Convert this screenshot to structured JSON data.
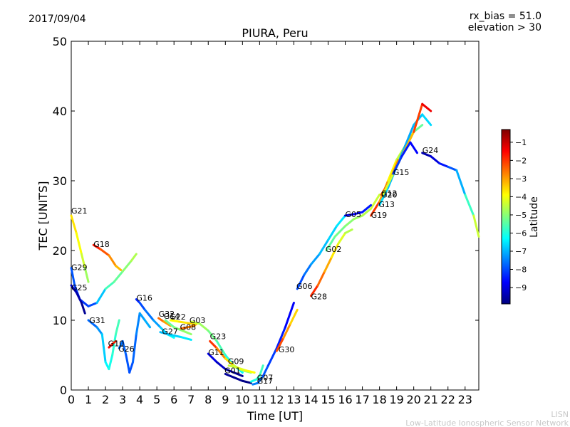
{
  "header": {
    "date": "2017/09/04",
    "rx_bias": "rx_bias = 51.0",
    "elevation": "elevation > 30",
    "title": "PIURA, Peru"
  },
  "footer": {
    "line1": "LISN",
    "line2": "Low-Latitude Ionospheric Sensor Network"
  },
  "chart_data": {
    "type": "scatter",
    "title": "PIURA, Peru",
    "xlabel": "Time [UT]",
    "ylabel": "TEC [UNITS]",
    "xlim": [
      0,
      23.8
    ],
    "ylim": [
      0,
      50
    ],
    "xticks": [
      0,
      1,
      2,
      3,
      4,
      5,
      6,
      7,
      8,
      9,
      10,
      11,
      12,
      13,
      14,
      15,
      16,
      17,
      18,
      19,
      20,
      21,
      22,
      23
    ],
    "yticks": [
      0,
      10,
      20,
      30,
      40,
      50
    ],
    "grid": false,
    "colorbar": {
      "label": "Latitude",
      "ticks": [
        -1,
        -2,
        -3,
        -4,
        -5,
        -6,
        -7,
        -8,
        -9
      ],
      "range": [
        -9.9,
        -0.3
      ],
      "colors": [
        "#00007f",
        "#0000ff",
        "#007fff",
        "#00ffff",
        "#7fff7f",
        "#ffff00",
        "#ff7f00",
        "#ff0000",
        "#7f0000"
      ]
    },
    "series": [
      {
        "name": "G21",
        "label_pos": [
          0,
          25.3
        ],
        "points": [
          [
            0,
            25
          ],
          [
            0.3,
            22.5
          ],
          [
            0.6,
            19.5
          ],
          [
            0.8,
            17.5
          ],
          [
            1.0,
            15.5
          ]
        ],
        "lats": [
          -3.5,
          -3.8,
          -4.1,
          -4.6,
          -5.0
        ]
      },
      {
        "name": "G29",
        "label_pos": [
          0,
          17.2
        ],
        "points": [
          [
            0,
            17.5
          ],
          [
            0.2,
            15
          ],
          [
            0.5,
            13
          ],
          [
            1,
            12
          ],
          [
            1.5,
            12.5
          ],
          [
            2,
            14.5
          ],
          [
            2.5,
            15.5
          ],
          [
            3,
            17
          ],
          [
            3.5,
            18.5
          ],
          [
            3.8,
            19.5
          ]
        ],
        "lats": [
          -7.8,
          -8.0,
          -8.2,
          -8.1,
          -7.9,
          -5.8,
          -5.5,
          -5.2,
          -4.8,
          -4.5
        ]
      },
      {
        "name": "G25",
        "label_pos": [
          0,
          14.3
        ],
        "points": [
          [
            0,
            15
          ],
          [
            0.3,
            14
          ],
          [
            0.6,
            12.5
          ],
          [
            0.8,
            11
          ]
        ],
        "lats": [
          -9.2,
          -9.4,
          -9.6,
          -9.8
        ]
      },
      {
        "name": "G18",
        "label_pos": [
          1.3,
          20.5
        ],
        "points": [
          [
            1.3,
            20.8
          ],
          [
            1.7,
            20.2
          ],
          [
            2.2,
            19.3
          ],
          [
            2.6,
            17.8
          ],
          [
            2.9,
            17.2
          ]
        ],
        "lats": [
          -1.4,
          -2.0,
          -2.6,
          -3.1,
          -3.4
        ]
      },
      {
        "name": "G31",
        "label_pos": [
          1.05,
          9.6
        ],
        "points": [
          [
            1,
            10
          ],
          [
            1.5,
            9
          ],
          [
            1.8,
            8
          ],
          [
            2,
            4
          ],
          [
            2.2,
            3
          ],
          [
            2.4,
            5
          ],
          [
            2.6,
            8
          ],
          [
            2.8,
            10
          ]
        ],
        "lats": [
          -7.8,
          -7.6,
          -7.0,
          -6.5,
          -6.2,
          -6.0,
          -5.8,
          -5.5
        ]
      },
      {
        "name": "G10",
        "label_pos": [
          2.15,
          6.3
        ],
        "points": [
          [
            2.2,
            6.1
          ],
          [
            2.4,
            6.6
          ],
          [
            2.6,
            7.0
          ]
        ],
        "lats": [
          -1.5,
          -1.7,
          -2.0
        ]
      },
      {
        "name": "G26",
        "label_pos": [
          2.75,
          5.5
        ],
        "points": [
          [
            2.8,
            6
          ],
          [
            3,
            7
          ],
          [
            3.2,
            5
          ],
          [
            3.4,
            2.5
          ],
          [
            3.6,
            4
          ],
          [
            3.8,
            8
          ],
          [
            4,
            11
          ],
          [
            4.3,
            10
          ],
          [
            4.6,
            9
          ]
        ],
        "lats": [
          -7.5,
          -7.7,
          -7.8,
          -8.0,
          -7.9,
          -7.6,
          -7.3,
          -7.1,
          -7.0
        ]
      },
      {
        "name": "G16",
        "label_pos": [
          3.8,
          12.8
        ],
        "points": [
          [
            3.8,
            13
          ],
          [
            4,
            12.5
          ],
          [
            4.3,
            11.5
          ],
          [
            4.8,
            10
          ],
          [
            5.2,
            9
          ],
          [
            5.6,
            8
          ],
          [
            6,
            7.5
          ]
        ],
        "lats": [
          -8.5,
          -8.2,
          -7.8,
          -7.4,
          -7.0,
          -6.5,
          -6.0
        ]
      },
      {
        "name": "G32",
        "label_pos": [
          5.1,
          10.5
        ],
        "points": [
          [
            5.1,
            10.3
          ],
          [
            5.4,
            9.8
          ],
          [
            5.8,
            9.2
          ]
        ],
        "lats": [
          -2.2,
          -2.8,
          -3.2
        ]
      },
      {
        "name": "G14",
        "label_pos": [
          5.4,
          10.2
        ],
        "points": [
          [
            5.5,
            10
          ],
          [
            6,
            9
          ],
          [
            6.5,
            8.5
          ],
          [
            7,
            8
          ]
        ],
        "lats": [
          -5.5,
          -5.2,
          -5.0,
          -4.8
        ]
      },
      {
        "name": "G22",
        "label_pos": [
          5.75,
          10.1
        ],
        "points": [
          [
            5.8,
            10
          ],
          [
            6.3,
            9.8
          ],
          [
            6.8,
            9.6
          ],
          [
            7.3,
            9.4
          ]
        ],
        "lats": [
          -4.0,
          -3.8,
          -3.6,
          -3.4
        ]
      },
      {
        "name": "G27",
        "label_pos": [
          5.3,
          8.0
        ],
        "points": [
          [
            5.2,
            8.3
          ],
          [
            5.8,
            7.9
          ],
          [
            6.4,
            7.6
          ],
          [
            7,
            7.2
          ]
        ],
        "lats": [
          -7.0,
          -6.8,
          -6.6,
          -6.4
        ]
      },
      {
        "name": "G08",
        "label_pos": [
          6.35,
          8.6
        ],
        "points": [
          [
            6.4,
            8.8
          ],
          [
            6.8,
            9.0
          ],
          [
            7.2,
            9.2
          ]
        ],
        "lats": [
          -2.4,
          -2.6,
          -2.8
        ]
      },
      {
        "name": "G03",
        "label_pos": [
          6.9,
          9.6
        ],
        "points": [
          [
            7,
            9.8
          ],
          [
            7.5,
            9.5
          ],
          [
            8,
            8.5
          ],
          [
            8.5,
            7
          ],
          [
            9,
            5
          ],
          [
            9.5,
            3.5
          ],
          [
            10,
            2.5
          ]
        ],
        "lats": [
          -4.2,
          -4.6,
          -5.0,
          -5.4,
          -5.8,
          -6.2,
          -6.5
        ]
      },
      {
        "name": "G23",
        "label_pos": [
          8.1,
          7.3
        ],
        "points": [
          [
            8.1,
            7
          ],
          [
            8.5,
            6
          ],
          [
            9,
            4.5
          ],
          [
            9.5,
            3.5
          ],
          [
            10,
            2.8
          ],
          [
            10.5,
            2.5
          ]
        ],
        "lats": [
          -1.6,
          -2.4,
          -3.2,
          -4.0,
          -4.6,
          -5.2
        ]
      },
      {
        "name": "G11",
        "label_pos": [
          8.0,
          5.0
        ],
        "points": [
          [
            8,
            5.2
          ],
          [
            8.5,
            4
          ],
          [
            9,
            3
          ],
          [
            9.5,
            2.5
          ],
          [
            10,
            2
          ]
        ],
        "lats": [
          -8.8,
          -9.1,
          -9.4,
          -9.6,
          -9.8
        ]
      },
      {
        "name": "G09",
        "label_pos": [
          9.15,
          3.7
        ],
        "points": [
          [
            9.2,
            3.5
          ],
          [
            9.7,
            3.2
          ],
          [
            10.2,
            2.8
          ],
          [
            10.7,
            2.5
          ]
        ],
        "lats": [
          -4.5,
          -4.3,
          -4.0,
          -3.8
        ]
      },
      {
        "name": "G01",
        "label_pos": [
          8.95,
          2.4
        ],
        "points": [
          [
            9,
            2.3
          ],
          [
            9.5,
            1.8
          ],
          [
            10,
            1.3
          ],
          [
            10.5,
            1.0
          ]
        ],
        "lats": [
          -9.6,
          -9.7,
          -9.8,
          -9.9
        ]
      },
      {
        "name": "G07",
        "label_pos": [
          10.85,
          1.4
        ],
        "points": [
          [
            10.5,
            1.2
          ],
          [
            10.8,
            1.5
          ],
          [
            11,
            2
          ],
          [
            11.2,
            3.5
          ]
        ],
        "lats": [
          -6.2,
          -6.0,
          -5.8,
          -5.6
        ]
      },
      {
        "name": "G17",
        "label_pos": [
          10.85,
          0.9
        ],
        "points": [
          [
            10.6,
            0.8
          ],
          [
            10.9,
            1.0
          ],
          [
            11.2,
            2.0
          ],
          [
            11.5,
            3.5
          ],
          [
            12,
            6
          ],
          [
            12.5,
            9
          ],
          [
            13,
            12.5
          ]
        ],
        "lats": [
          -7.4,
          -7.6,
          -7.8,
          -8.0,
          -8.3,
          -8.6,
          -8.9
        ]
      },
      {
        "name": "G30",
        "label_pos": [
          12.1,
          5.4
        ],
        "points": [
          [
            12,
            5.6
          ],
          [
            12.4,
            7.5
          ],
          [
            12.8,
            9.5
          ],
          [
            13.2,
            11.5
          ]
        ],
        "lats": [
          -1.8,
          -2.6,
          -3.2,
          -3.8
        ]
      },
      {
        "name": "G06",
        "label_pos": [
          13.15,
          14.5
        ],
        "points": [
          [
            13.2,
            14.5
          ],
          [
            13.6,
            16.5
          ],
          [
            14,
            18
          ],
          [
            14.5,
            19.5
          ],
          [
            15,
            21.5
          ],
          [
            15.5,
            23.5
          ],
          [
            16,
            25
          ]
        ],
        "lats": [
          -8.2,
          -7.8,
          -7.4,
          -7.0,
          -6.8,
          -6.6,
          -6.4
        ]
      },
      {
        "name": "G28",
        "label_pos": [
          14.0,
          13.0
        ],
        "points": [
          [
            14,
            13.5
          ],
          [
            14.4,
            15
          ],
          [
            14.8,
            17
          ],
          [
            15.2,
            19
          ],
          [
            15.6,
            21
          ],
          [
            16,
            22.5
          ],
          [
            16.4,
            23
          ]
        ],
        "lats": [
          -1.6,
          -2.2,
          -2.8,
          -3.4,
          -4.0,
          -4.4,
          -4.8
        ]
      },
      {
        "name": "G02",
        "label_pos": [
          14.85,
          19.8
        ],
        "points": [
          [
            14.9,
            20
          ],
          [
            15.4,
            22
          ],
          [
            16,
            23.5
          ],
          [
            16.5,
            24.5
          ],
          [
            17,
            25
          ],
          [
            17.5,
            26
          ],
          [
            18,
            28
          ]
        ],
        "lats": [
          -5.5,
          -5.3,
          -5.1,
          -4.9,
          -4.7,
          -4.5,
          -4.3
        ]
      },
      {
        "name": "G05",
        "label_pos": [
          16.0,
          24.8
        ],
        "points": [
          [
            16,
            25
          ],
          [
            16.5,
            25.2
          ],
          [
            17,
            25.5
          ],
          [
            17.5,
            26.5
          ]
        ],
        "lats": [
          -9.0,
          -8.8,
          -8.6,
          -8.4
        ]
      },
      {
        "name": "G19",
        "label_pos": [
          17.5,
          24.7
        ],
        "points": [
          [
            17.5,
            25
          ],
          [
            18,
            27
          ],
          [
            18.5,
            30
          ],
          [
            19,
            33
          ],
          [
            19.5,
            35
          ],
          [
            20,
            37
          ],
          [
            20.5,
            38
          ]
        ],
        "lats": [
          -1.5,
          -2.5,
          -3.5,
          -4.2,
          -4.8,
          -5.2,
          -5.5
        ]
      },
      {
        "name": "G13",
        "label_pos": [
          17.95,
          26.2
        ],
        "points": [
          [
            18,
            26.5
          ],
          [
            18.5,
            29
          ],
          [
            19,
            32
          ],
          [
            19.5,
            35
          ],
          [
            20,
            38
          ],
          [
            20.5,
            39.5
          ],
          [
            21,
            38
          ]
        ],
        "lats": [
          -6.5,
          -6.8,
          -7.0,
          -7.2,
          -7.0,
          -6.8,
          -6.5
        ]
      },
      {
        "name": "G20",
        "label_pos": [
          18.1,
          27.6
        ],
        "points": [
          [
            18.1,
            28
          ],
          [
            18.6,
            30
          ],
          [
            19.1,
            33
          ]
        ],
        "lats": [
          -2.2,
          -2.6,
          -3.0
        ]
      },
      {
        "name": "G12",
        "label_pos": [
          18.1,
          27.8
        ],
        "points": [
          [
            18.2,
            28
          ],
          [
            18.8,
            31
          ],
          [
            19.4,
            34
          ],
          [
            20,
            37
          ],
          [
            20.5,
            41
          ],
          [
            21,
            40
          ]
        ],
        "lats": [
          -4.5,
          -4.0,
          -3.5,
          -3.0,
          -1.2,
          -1.5
        ]
      },
      {
        "name": "G15",
        "label_pos": [
          18.8,
          30.8
        ],
        "points": [
          [
            18.8,
            31
          ],
          [
            19.3,
            33.5
          ],
          [
            19.8,
            35.5
          ],
          [
            20.2,
            34
          ]
        ],
        "lats": [
          -8.0,
          -8.3,
          -8.6,
          -8.8
        ]
      },
      {
        "name": "G24",
        "label_pos": [
          20.5,
          34.0
        ],
        "points": [
          [
            20.5,
            34
          ],
          [
            21,
            33.5
          ],
          [
            21.5,
            32.5
          ],
          [
            22,
            32
          ],
          [
            22.5,
            31.5
          ],
          [
            23,
            28
          ],
          [
            23.5,
            25
          ],
          [
            23.8,
            22
          ]
        ],
        "lats": [
          -9.6,
          -9.3,
          -8.8,
          -8.2,
          -7.6,
          -6.5,
          -5.0,
          -3.8
        ]
      }
    ]
  }
}
